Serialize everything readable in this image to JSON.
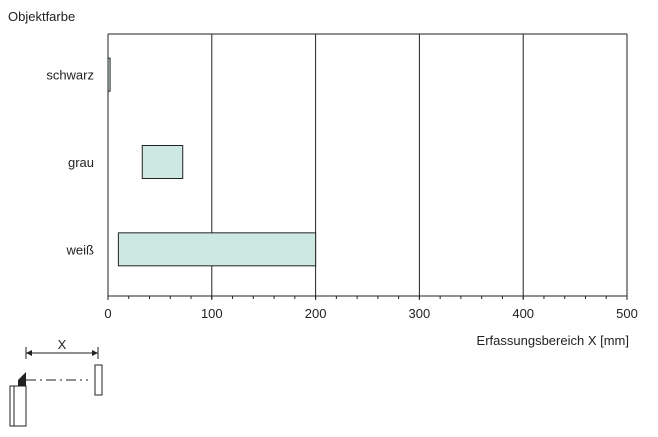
{
  "chart_data": {
    "type": "bar",
    "orientation": "horizontal",
    "title": "",
    "ylabel": "Objektfarbe",
    "xlabel": "Erfassungsbereich X [mm]",
    "xlim": [
      0,
      500
    ],
    "xticks": [
      "0",
      "100",
      "200",
      "300",
      "400",
      "500"
    ],
    "grid": true,
    "categories": [
      "schwarz",
      "grau",
      "weiß"
    ],
    "ranges": [
      {
        "category": "schwarz",
        "start": 0,
        "end": 2
      },
      {
        "category": "grau",
        "start": 33,
        "end": 72
      },
      {
        "category": "weiß",
        "start": 10,
        "end": 200
      }
    ],
    "bar_color": "#cde8e2",
    "schematic_label": "X"
  }
}
